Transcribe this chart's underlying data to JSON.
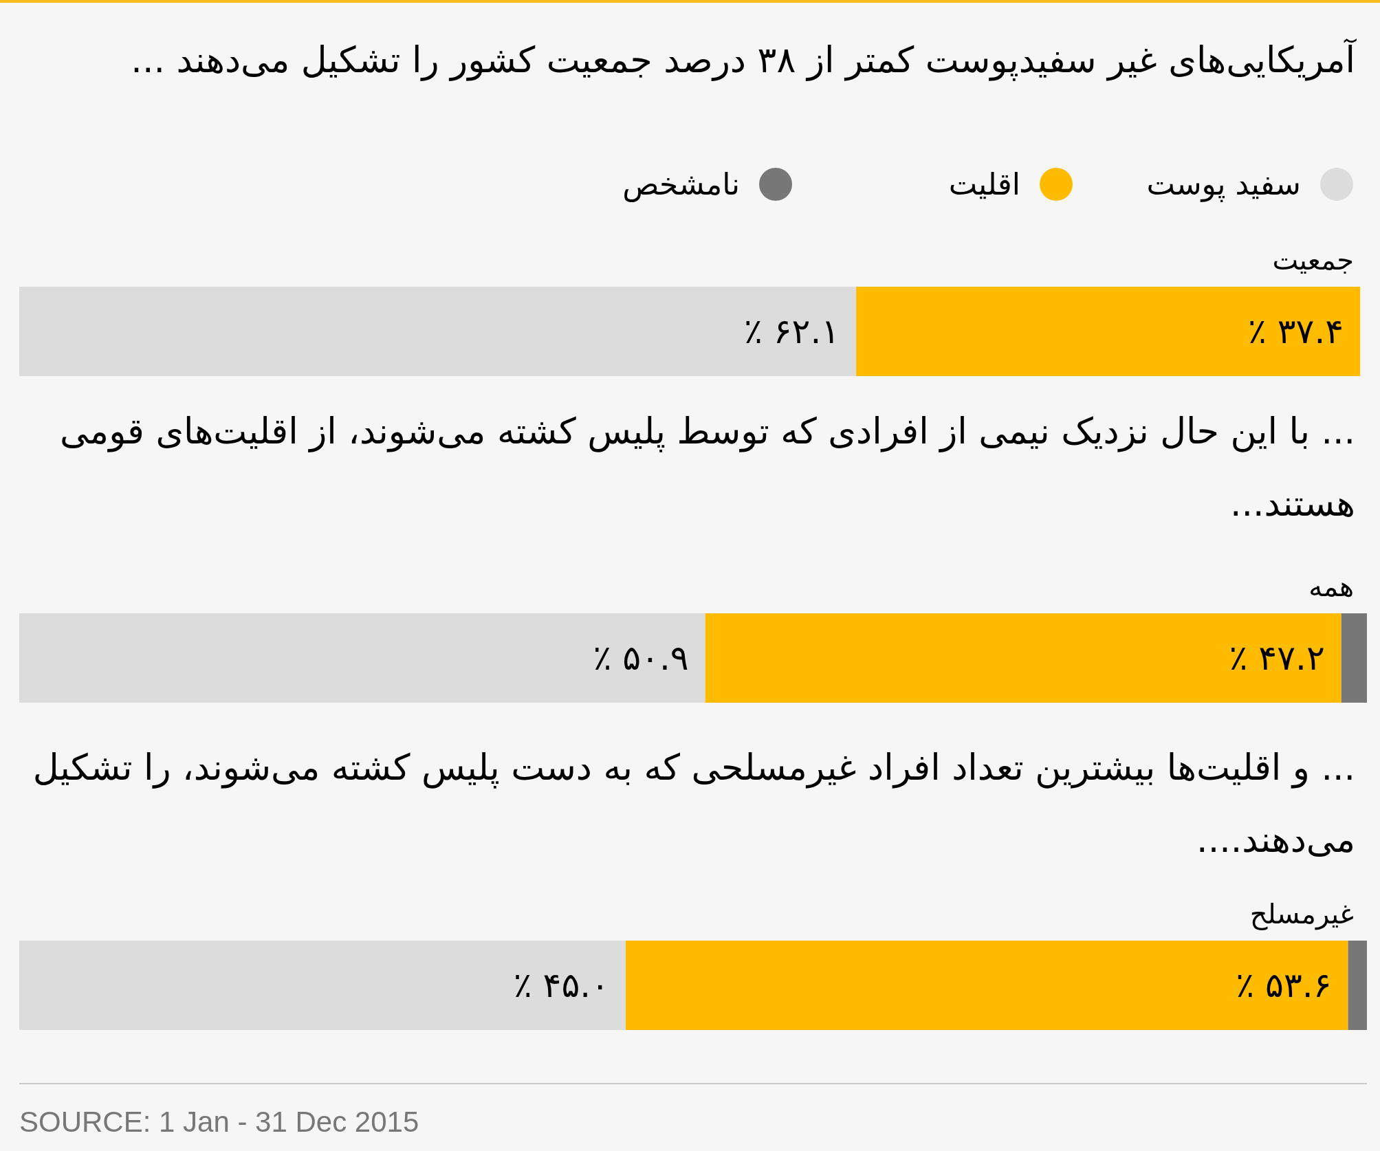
{
  "chart_data": [
    {
      "type": "bar",
      "orientation": "horizontal",
      "stacked": true,
      "title": "آمریکایی‌های غیر سفیدپوست کمتر از ۳۸ درصد جمعیت کشور را تشکیل می‌دهند ...",
      "categories": [
        "جمعیت"
      ],
      "series": [
        {
          "name": "سفید پوست",
          "color": "#dcdcdc",
          "values": [
            62.1
          ],
          "value_labels": [
            "۶۲.۱ ٪"
          ]
        },
        {
          "name": "اقلیت",
          "color": "#ffbb00",
          "values": [
            37.4
          ],
          "value_labels": [
            "۳۷.۴ ٪"
          ]
        },
        {
          "name": "نامشخص",
          "color": "#777777",
          "values": [
            null
          ]
        }
      ],
      "xlim": [
        0,
        100
      ],
      "tick_labels": "y",
      "legend": "top"
    },
    {
      "type": "bar",
      "orientation": "horizontal",
      "stacked": true,
      "title": "... با این حال نزدیک نیمی از افرادی که توسط پلیس کشته می‌شوند، از اقلیت‌های قومی هستند...",
      "categories": [
        "همه"
      ],
      "series": [
        {
          "color": "#dcdcdc",
          "values": [
            50.9
          ],
          "value_labels": [
            "۵۰.۹ ٪"
          ]
        },
        {
          "color": "#ffbb00",
          "values": [
            47.2
          ],
          "value_labels": [
            "۴۷.۲ ٪"
          ]
        },
        {
          "color": "#777777",
          "values": [
            1.9
          ],
          "value_labels": [
            null
          ]
        }
      ],
      "xlim": [
        0,
        100
      ],
      "tick_labels": "y"
    },
    {
      "type": "bar",
      "orientation": "horizontal",
      "stacked": true,
      "title": "... و اقلیت‌ها بیشترین تعداد افراد غیرمسلحی که به دست پلیس کشته می‌شوند، را تشکیل می‌دهند....",
      "categories": [
        "غیرمسلح"
      ],
      "series": [
        {
          "color": "#dcdcdc",
          "values": [
            45.0
          ],
          "value_labels": [
            "۴۵.۰ ٪"
          ]
        },
        {
          "color": "#ffbb00",
          "values": [
            53.6
          ],
          "value_labels": [
            "۵۳.۶ ٪"
          ]
        },
        {
          "color": "#777777",
          "values": [
            1.4
          ],
          "value_labels": [
            null
          ]
        }
      ],
      "xlim": [
        0,
        100
      ],
      "tick_labels": "y",
      "annotations": [
        "SOURCE: 1 Jan - 31 Dec 2015"
      ]
    }
  ]
}
